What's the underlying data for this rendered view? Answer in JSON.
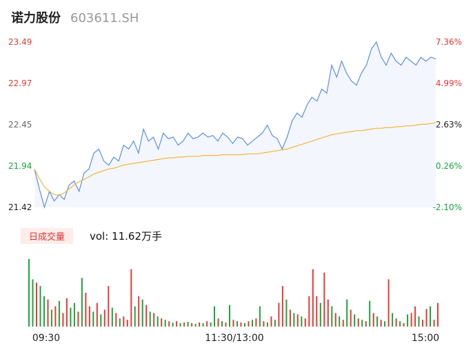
{
  "header": {
    "stock_name": "诺力股份",
    "stock_code": "603611.SH"
  },
  "volume": {
    "badge_label": "日成交量",
    "vol_text": "vol: 11.62万手"
  },
  "colors": {
    "price_line": "#5b8def",
    "avg_line": "#f2b53a",
    "area_fill": "#f3f6fd",
    "up": "#e53935",
    "down": "#1aa33a",
    "neutral": "#222222"
  },
  "chart_data": {
    "type": "line",
    "y_left_ticks": [
      "23.49",
      "22.97",
      "22.45",
      "21.94",
      "21.42"
    ],
    "y_right_ticks": [
      "7.36%",
      "4.99%",
      "2.63%",
      "0.26%",
      "-2.10%"
    ],
    "y_range": [
      21.42,
      23.49
    ],
    "x_ticks": [
      "09:30",
      "11:30/13:00",
      "15:00"
    ],
    "price": [
      21.9,
      21.65,
      21.42,
      21.62,
      21.5,
      21.58,
      21.52,
      21.7,
      21.75,
      21.62,
      21.85,
      21.9,
      22.1,
      22.15,
      22.0,
      21.95,
      22.05,
      22.0,
      22.2,
      22.15,
      22.25,
      22.1,
      22.4,
      22.25,
      22.3,
      22.15,
      22.35,
      22.28,
      22.3,
      22.2,
      22.25,
      22.35,
      22.28,
      22.3,
      22.35,
      22.3,
      22.32,
      22.25,
      22.35,
      22.3,
      22.22,
      22.3,
      22.28,
      22.2,
      22.25,
      22.3,
      22.35,
      22.45,
      22.32,
      22.28,
      22.15,
      22.3,
      22.5,
      22.6,
      22.55,
      22.7,
      22.8,
      22.75,
      22.9,
      22.85,
      23.2,
      23.05,
      23.25,
      23.1,
      23.0,
      22.95,
      23.1,
      23.2,
      23.4,
      23.49,
      23.3,
      23.2,
      23.35,
      23.25,
      23.2,
      23.3,
      23.25,
      23.2,
      23.3,
      23.25,
      23.3,
      23.28
    ],
    "avg": [
      21.9,
      21.78,
      21.68,
      21.62,
      21.58,
      21.57,
      21.6,
      21.65,
      21.7,
      21.74,
      21.77,
      21.8,
      21.84,
      21.86,
      21.88,
      21.9,
      21.91,
      21.93,
      21.95,
      21.96,
      21.97,
      21.98,
      21.99,
      22.0,
      22.01,
      22.02,
      22.03,
      22.04,
      22.04,
      22.05,
      22.05,
      22.06,
      22.06,
      22.06,
      22.07,
      22.07,
      22.07,
      22.07,
      22.08,
      22.08,
      22.08,
      22.08,
      22.08,
      22.09,
      22.09,
      22.09,
      22.1,
      22.11,
      22.12,
      22.13,
      22.14,
      22.15,
      22.17,
      22.19,
      22.21,
      22.23,
      22.25,
      22.27,
      22.29,
      22.31,
      22.33,
      22.34,
      22.35,
      22.36,
      22.37,
      22.38,
      22.38,
      22.39,
      22.4,
      22.41,
      22.41,
      22.42,
      22.42,
      22.43,
      22.43,
      22.44,
      22.44,
      22.45,
      22.46,
      22.46,
      22.47,
      22.48
    ],
    "volume_bars": [
      {
        "v": 100,
        "c": "down"
      },
      {
        "v": 70,
        "c": "down"
      },
      {
        "v": 65,
        "c": "up"
      },
      {
        "v": 60,
        "c": "down"
      },
      {
        "v": 45,
        "c": "down"
      },
      {
        "v": 40,
        "c": "up"
      },
      {
        "v": 25,
        "c": "down"
      },
      {
        "v": 30,
        "c": "up"
      },
      {
        "v": 38,
        "c": "down"
      },
      {
        "v": 20,
        "c": "up"
      },
      {
        "v": 42,
        "c": "up"
      },
      {
        "v": 28,
        "c": "down"
      },
      {
        "v": 35,
        "c": "down"
      },
      {
        "v": 22,
        "c": "up"
      },
      {
        "v": 72,
        "c": "down"
      },
      {
        "v": 50,
        "c": "up"
      },
      {
        "v": 30,
        "c": "up"
      },
      {
        "v": 22,
        "c": "down"
      },
      {
        "v": 35,
        "c": "up"
      },
      {
        "v": 18,
        "c": "down"
      },
      {
        "v": 25,
        "c": "up"
      },
      {
        "v": 60,
        "c": "up"
      },
      {
        "v": 28,
        "c": "down"
      },
      {
        "v": 20,
        "c": "up"
      },
      {
        "v": 12,
        "c": "down"
      },
      {
        "v": 15,
        "c": "up"
      },
      {
        "v": 10,
        "c": "up"
      },
      {
        "v": 85,
        "c": "up"
      },
      {
        "v": 30,
        "c": "down"
      },
      {
        "v": 45,
        "c": "up"
      },
      {
        "v": 40,
        "c": "down"
      },
      {
        "v": 32,
        "c": "up"
      },
      {
        "v": 22,
        "c": "down"
      },
      {
        "v": 20,
        "c": "up"
      },
      {
        "v": 15,
        "c": "down"
      },
      {
        "v": 12,
        "c": "up"
      },
      {
        "v": 10,
        "c": "down"
      },
      {
        "v": 8,
        "c": "up"
      },
      {
        "v": 6,
        "c": "down"
      },
      {
        "v": 8,
        "c": "up"
      },
      {
        "v": 5,
        "c": "down"
      },
      {
        "v": 6,
        "c": "up"
      },
      {
        "v": 7,
        "c": "down"
      },
      {
        "v": 5,
        "c": "up"
      },
      {
        "v": 4,
        "c": "down"
      },
      {
        "v": 6,
        "c": "up"
      },
      {
        "v": 5,
        "c": "down"
      },
      {
        "v": 8,
        "c": "up"
      },
      {
        "v": 6,
        "c": "down"
      },
      {
        "v": 30,
        "c": "down"
      },
      {
        "v": 12,
        "c": "up"
      },
      {
        "v": 8,
        "c": "down"
      },
      {
        "v": 6,
        "c": "up"
      },
      {
        "v": 32,
        "c": "down"
      },
      {
        "v": 10,
        "c": "up"
      },
      {
        "v": 8,
        "c": "down"
      },
      {
        "v": 6,
        "c": "up"
      },
      {
        "v": 5,
        "c": "down"
      },
      {
        "v": 8,
        "c": "up"
      },
      {
        "v": 10,
        "c": "down"
      },
      {
        "v": 12,
        "c": "up"
      },
      {
        "v": 30,
        "c": "down"
      },
      {
        "v": 8,
        "c": "up"
      },
      {
        "v": 6,
        "c": "down"
      },
      {
        "v": 15,
        "c": "up"
      },
      {
        "v": 10,
        "c": "down"
      },
      {
        "v": 35,
        "c": "up"
      },
      {
        "v": 60,
        "c": "up"
      },
      {
        "v": 40,
        "c": "down"
      },
      {
        "v": 25,
        "c": "up"
      },
      {
        "v": 20,
        "c": "down"
      },
      {
        "v": 18,
        "c": "up"
      },
      {
        "v": 15,
        "c": "down"
      },
      {
        "v": 12,
        "c": "up"
      },
      {
        "v": 45,
        "c": "up"
      },
      {
        "v": 85,
        "c": "up"
      },
      {
        "v": 45,
        "c": "up"
      },
      {
        "v": 35,
        "c": "down"
      },
      {
        "v": 80,
        "c": "up"
      },
      {
        "v": 40,
        "c": "up"
      },
      {
        "v": 30,
        "c": "down"
      },
      {
        "v": 20,
        "c": "up"
      },
      {
        "v": 15,
        "c": "down"
      },
      {
        "v": 10,
        "c": "up"
      },
      {
        "v": 40,
        "c": "down"
      },
      {
        "v": 25,
        "c": "up"
      },
      {
        "v": 18,
        "c": "down"
      },
      {
        "v": 12,
        "c": "up"
      },
      {
        "v": 10,
        "c": "down"
      },
      {
        "v": 8,
        "c": "up"
      },
      {
        "v": 38,
        "c": "down"
      },
      {
        "v": 20,
        "c": "up"
      },
      {
        "v": 15,
        "c": "down"
      },
      {
        "v": 10,
        "c": "up"
      },
      {
        "v": 8,
        "c": "down"
      },
      {
        "v": 70,
        "c": "up"
      },
      {
        "v": 20,
        "c": "down"
      },
      {
        "v": 12,
        "c": "up"
      },
      {
        "v": 8,
        "c": "down"
      },
      {
        "v": 5,
        "c": "up"
      },
      {
        "v": 18,
        "c": "down"
      },
      {
        "v": 20,
        "c": "up"
      },
      {
        "v": 30,
        "c": "up"
      },
      {
        "v": 15,
        "c": "down"
      },
      {
        "v": 10,
        "c": "up"
      },
      {
        "v": 26,
        "c": "up"
      },
      {
        "v": 30,
        "c": "down"
      },
      {
        "v": 10,
        "c": "up"
      },
      {
        "v": 35,
        "c": "up"
      }
    ]
  }
}
